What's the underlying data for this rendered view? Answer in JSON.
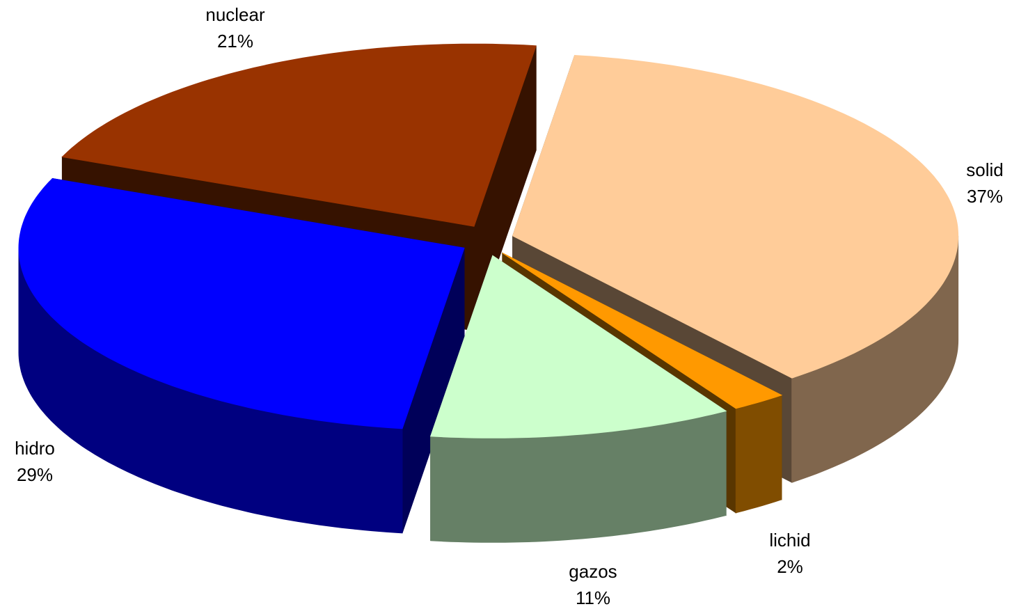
{
  "chart_data": {
    "type": "pie3d",
    "categories": [
      "solid",
      "lichid",
      "gazos",
      "hidro",
      "nuclear"
    ],
    "values": [
      37,
      2,
      11,
      29,
      21
    ],
    "value_labels": [
      "37%",
      "2%",
      "11%",
      "29%",
      "21%"
    ],
    "colors": [
      "#ffcc99",
      "#ff9900",
      "#ccffcc",
      "#0000ff",
      "#993300"
    ]
  }
}
